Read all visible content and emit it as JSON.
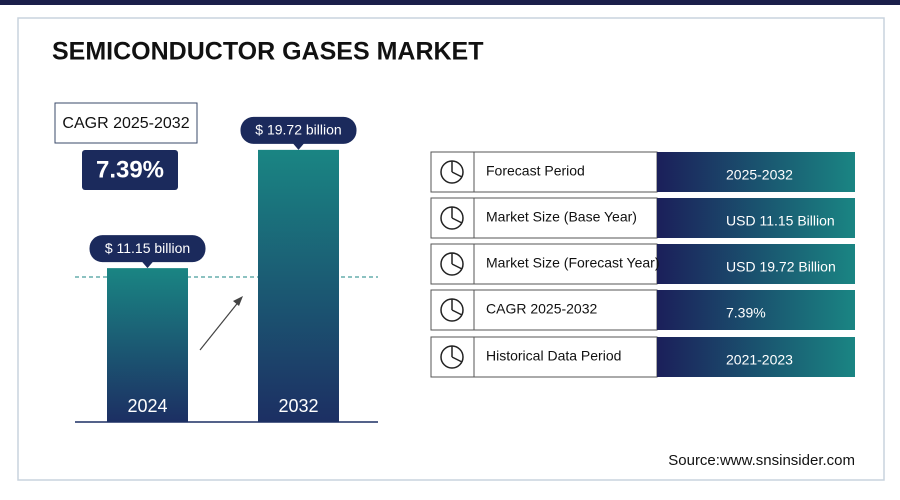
{
  "title": "SEMICONDUCTOR GASES MARKET",
  "cagr": {
    "label": "CAGR 2025-2032",
    "value": "7.39%"
  },
  "chart_data": {
    "type": "bar",
    "categories": [
      "2024",
      "2032"
    ],
    "values": [
      11.15,
      19.72
    ],
    "value_labels": [
      "$ 11.15 billion",
      "$ 19.72 billion"
    ]
  },
  "table": {
    "rows": [
      [
        "Forecast Period",
        "2025-2032"
      ],
      [
        "Market Size (Base Year)",
        "USD 11.15 Billion"
      ],
      [
        "Market Size (Forecast Year)",
        "USD 19.72 Billion"
      ],
      [
        "CAGR 2025-2032",
        "7.39%"
      ],
      [
        "Historical Data Period",
        "2021-2023"
      ]
    ]
  },
  "source": "Source:www.snsinsider.com"
}
